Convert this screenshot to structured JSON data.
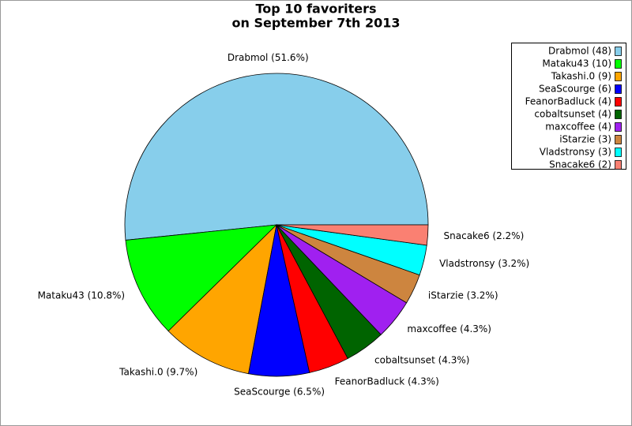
{
  "chart_data": {
    "type": "pie",
    "title": "Top 10 favoriters",
    "subtitle": "on September 7th 2013",
    "categories": [
      "Drabmol (48)",
      "Mataku43 (10)",
      "Takashi.0 (9)",
      "SeaScourge (6)",
      "FeanorBadluck (4)",
      "cobaltsunset (4)",
      "maxcoffee (4)",
      "iStarzie (3)",
      "Vladstronsy (3)",
      "Snacake6 (2)"
    ],
    "values": [
      48,
      10,
      9,
      6,
      4,
      4,
      4,
      3,
      3,
      2
    ],
    "value_labels": [
      "Drabmol (51.6%)",
      "Mataku43 (10.8%)",
      "Takashi.0 (9.7%)",
      "SeaScourge (6.5%)",
      "FeanorBadluck (4.3%)",
      "cobaltsunset (4.3%)",
      "maxcoffee (4.3%)",
      "iStarzie (3.2%)",
      "Vladstronsy (3.2%)",
      "Snacake6 (2.2%)"
    ],
    "colors": [
      "#87ceeb",
      "#00ff00",
      "#ffa500",
      "#0000ff",
      "#ff0000",
      "#006400",
      "#a020f0",
      "#cd853f",
      "#00ffff",
      "#fa8072"
    ],
    "legend": "upper right"
  }
}
